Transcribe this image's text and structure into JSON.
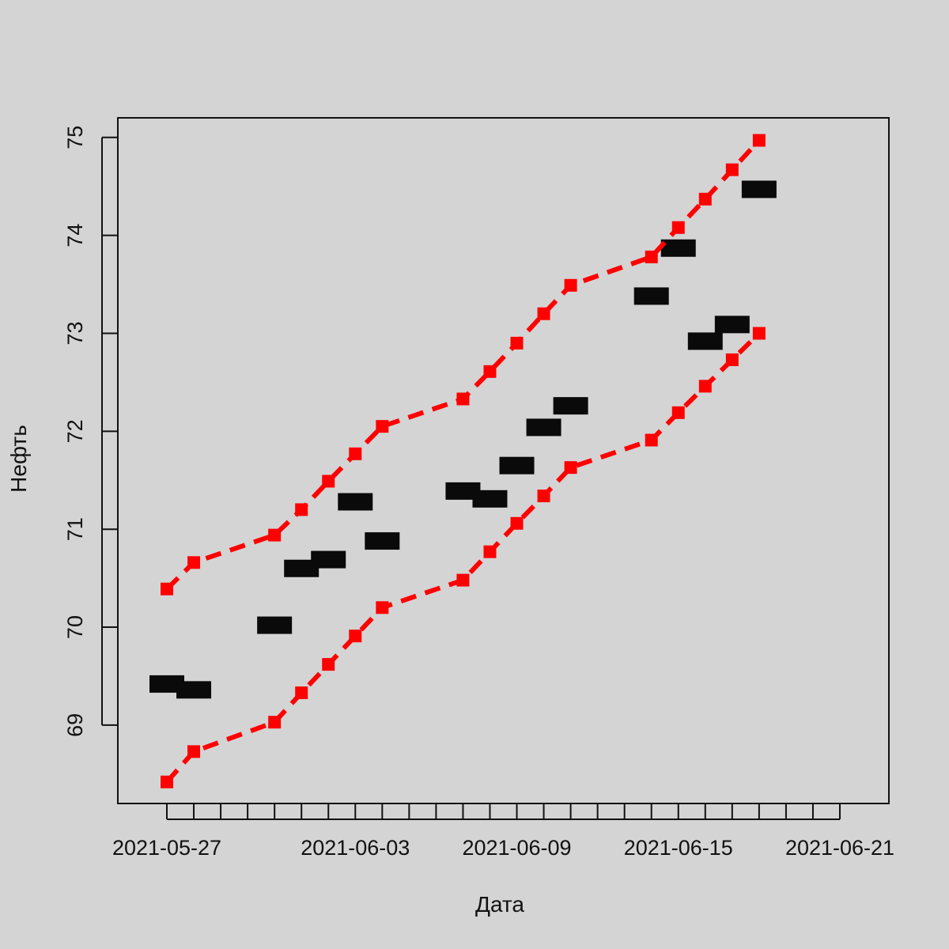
{
  "chart_data": {
    "type": "line",
    "title": "",
    "xlabel": "Дата",
    "ylabel": "Нефть",
    "x": [
      "2021-05-27",
      "2021-05-28",
      "2021-05-31",
      "2021-06-01",
      "2021-06-02",
      "2021-06-03",
      "2021-06-04",
      "2021-06-07",
      "2021-06-08",
      "2021-06-09",
      "2021-06-10",
      "2021-06-11",
      "2021-06-14",
      "2021-06-15",
      "2021-06-16",
      "2021-06-17",
      "2021-06-18"
    ],
    "x_ticks": [
      "2021-05-27",
      "2021-06-03",
      "2021-06-09",
      "2021-06-15",
      "2021-06-21"
    ],
    "y_ticks": [
      69,
      70,
      71,
      72,
      73,
      74,
      75
    ],
    "ylim": [
      68.2,
      75.2
    ],
    "grid": false,
    "series": [
      {
        "style": "black thick horizontal marks",
        "color": "#000000",
        "values": [
          69.42,
          69.36,
          70.02,
          70.6,
          70.69,
          71.28,
          70.88,
          71.39,
          71.31,
          71.65,
          72.04,
          72.26,
          73.38,
          73.87,
          72.92,
          73.09,
          74.47
        ]
      },
      {
        "style": "red dashed line with square markers",
        "color": "#ff0000",
        "values": [
          70.39,
          70.66,
          70.94,
          71.2,
          71.49,
          71.77,
          72.05,
          72.33,
          72.61,
          72.9,
          73.2,
          73.49,
          73.78,
          74.08,
          74.37,
          74.67,
          74.97
        ]
      },
      {
        "style": "red dashed line with square markers",
        "color": "#ff0000",
        "values": [
          68.42,
          68.73,
          69.03,
          69.33,
          69.62,
          69.91,
          70.2,
          70.48,
          70.77,
          71.06,
          71.34,
          71.63,
          71.91,
          72.19,
          72.46,
          72.73,
          73.0
        ]
      }
    ]
  }
}
